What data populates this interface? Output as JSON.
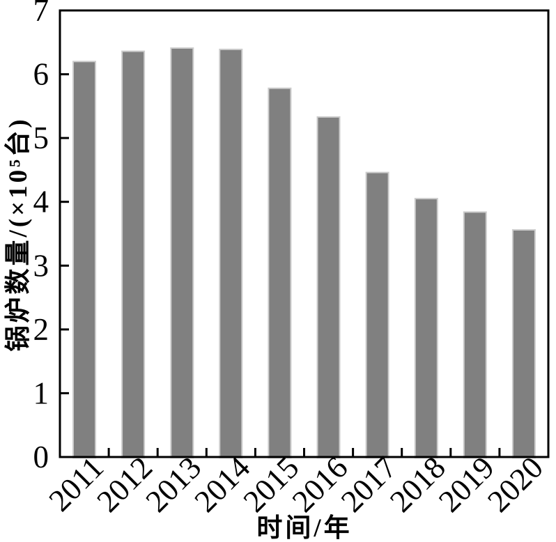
{
  "chart_data": {
    "type": "bar",
    "title": "",
    "categories": [
      "2011",
      "2012",
      "2013",
      "2014",
      "2015",
      "2016",
      "2017",
      "2018",
      "2019",
      "2020"
    ],
    "values": [
      6.2,
      6.36,
      6.41,
      6.39,
      5.78,
      5.33,
      4.46,
      4.05,
      3.84,
      3.56
    ],
    "xlabel": "时间/年",
    "ylabel": "锅炉数量/(×10⁵台)",
    "ylim": [
      0,
      7
    ],
    "yticks": [
      0,
      1,
      2,
      3,
      4,
      5,
      6,
      7
    ],
    "grid": false,
    "legend": "none",
    "tick_direction": "in",
    "x_tick_label_rotation": -45,
    "colors": {
      "bar_fill": "#808080",
      "bar_edge": "#cccccc",
      "axis": "#000000",
      "text": "#000000",
      "background": "#ffffff"
    }
  }
}
